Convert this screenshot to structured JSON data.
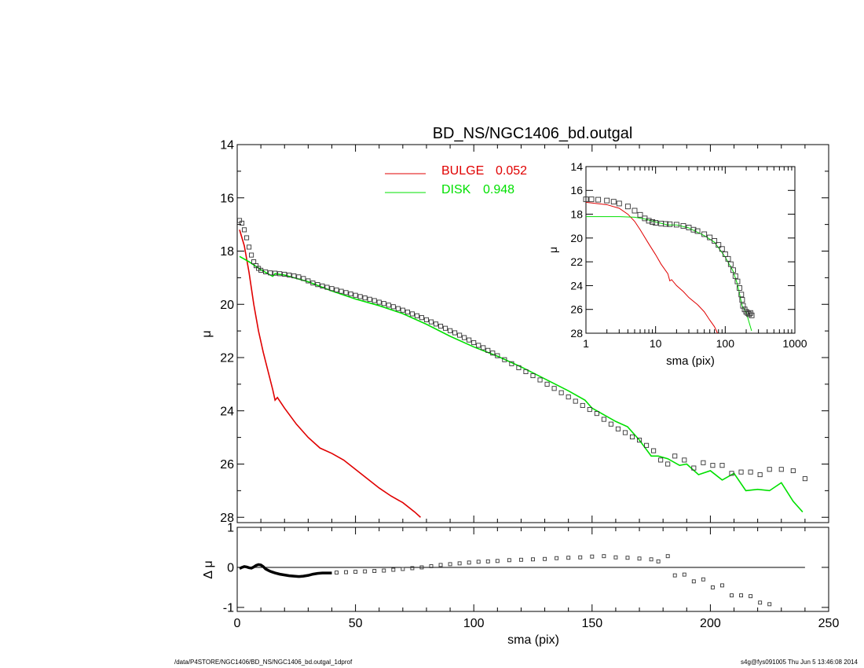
{
  "footer": {
    "path": "/data/P4STORE/NGC1406/BD_NS/NGC1406_bd.outgal_1dprof",
    "stamp": "s4g@fys091005  Thu Jun  5 13:46:08 2014"
  },
  "chart_data": [
    {
      "type": "line",
      "title": "BD_NS/NGC1406_bd.outgal",
      "xlabel": "",
      "ylabel": "μ",
      "xlim": [
        0,
        250
      ],
      "ylim": [
        28.2,
        14
      ],
      "y_inverted": true,
      "x_ticks": [
        0,
        50,
        100,
        150,
        200,
        250
      ],
      "x_tick_labels": [
        "",
        "",
        "",
        "",
        "",
        ""
      ],
      "y_ticks": [
        14,
        16,
        18,
        20,
        22,
        24,
        26,
        28
      ],
      "y_tick_labels": [
        "14",
        "16",
        "18",
        "20",
        "22",
        "24",
        "26",
        "28"
      ],
      "legend": [
        {
          "label": "BULGE",
          "value": "0.052",
          "color": "#e00000"
        },
        {
          "label": "DISK",
          "value": "0.948",
          "color": "#00e000"
        }
      ],
      "legend_placement": "top-center",
      "series": [
        {
          "name": "BULGE",
          "color": "#e00000",
          "style": "line",
          "x": [
            1,
            3,
            5,
            7,
            9,
            11,
            13,
            15,
            16,
            17,
            20,
            25,
            30,
            35,
            40,
            45,
            50,
            55,
            60,
            65,
            70,
            75,
            77.5
          ],
          "y": [
            17.2,
            17.8,
            18.8,
            20.0,
            21.0,
            21.8,
            22.5,
            23.2,
            23.6,
            23.5,
            23.9,
            24.5,
            25.0,
            25.4,
            25.6,
            25.85,
            26.2,
            26.55,
            26.9,
            27.2,
            27.45,
            27.8,
            28.0
          ]
        },
        {
          "name": "DISK",
          "color": "#00e000",
          "style": "line",
          "x": [
            1,
            5,
            10,
            15,
            16,
            20,
            30,
            40,
            50,
            60,
            70,
            80,
            90,
            100,
            110,
            120,
            130,
            140,
            147,
            150,
            155,
            160,
            165,
            170,
            175,
            178,
            182,
            187,
            190,
            195,
            200,
            205,
            210,
            215,
            220,
            225,
            230,
            235,
            239
          ],
          "y": [
            18.2,
            18.4,
            18.7,
            18.95,
            18.85,
            18.9,
            19.15,
            19.5,
            19.8,
            20.05,
            20.35,
            20.75,
            21.2,
            21.6,
            21.95,
            22.35,
            22.8,
            23.25,
            23.6,
            23.9,
            24.15,
            24.4,
            24.6,
            25.1,
            25.7,
            25.7,
            25.8,
            26.05,
            26.0,
            26.4,
            26.25,
            26.6,
            26.35,
            27.0,
            26.95,
            27.0,
            26.7,
            27.4,
            27.8
          ]
        },
        {
          "name": "",
          "color": "#000000",
          "style": "marker",
          "x": [
            1,
            2,
            3,
            4,
            5,
            6,
            7,
            8,
            9,
            10,
            12,
            14,
            16,
            18,
            20,
            22,
            24,
            26,
            28,
            30,
            32,
            34,
            36,
            38,
            40,
            42,
            44,
            46,
            48,
            50,
            52,
            54,
            56,
            58,
            60,
            62,
            64,
            66,
            68,
            70,
            72,
            74,
            76,
            78,
            80,
            82,
            84,
            86,
            88,
            90,
            92,
            94,
            96,
            98,
            100,
            102,
            104,
            106,
            108,
            110,
            113,
            116,
            119,
            122,
            125,
            128,
            131,
            134,
            137,
            140,
            143,
            146,
            149,
            152,
            155,
            158,
            161,
            164,
            167,
            170,
            173,
            176,
            179,
            182,
            185,
            189,
            193,
            197,
            201,
            205,
            209,
            213,
            217,
            221,
            225,
            230,
            235,
            240
          ],
          "y": [
            16.85,
            16.95,
            17.2,
            17.5,
            17.85,
            18.15,
            18.4,
            18.55,
            18.65,
            18.72,
            18.78,
            18.82,
            18.83,
            18.85,
            18.87,
            18.9,
            18.93,
            18.97,
            19.03,
            19.12,
            19.2,
            19.26,
            19.31,
            19.36,
            19.41,
            19.46,
            19.51,
            19.56,
            19.61,
            19.66,
            19.71,
            19.76,
            19.81,
            19.86,
            19.92,
            19.97,
            20.03,
            20.09,
            20.16,
            20.22,
            20.29,
            20.36,
            20.43,
            20.5,
            20.58,
            20.66,
            20.74,
            20.82,
            20.9,
            20.99,
            21.07,
            21.16,
            21.25,
            21.34,
            21.44,
            21.54,
            21.63,
            21.73,
            21.83,
            21.93,
            22.08,
            22.23,
            22.38,
            22.53,
            22.68,
            22.84,
            23.0,
            23.16,
            23.32,
            23.48,
            23.64,
            23.8,
            23.95,
            24.1,
            24.32,
            24.5,
            24.68,
            24.82,
            24.98,
            25.1,
            25.3,
            25.5,
            25.85,
            26.0,
            25.7,
            25.85,
            26.15,
            25.95,
            26.05,
            26.05,
            26.35,
            26.3,
            26.3,
            26.4,
            26.2,
            26.2,
            26.25,
            26.55
          ]
        }
      ]
    },
    {
      "type": "scatter",
      "title": "",
      "xlabel": "sma (pix)",
      "ylabel": "Δ μ",
      "xlim": [
        0,
        250
      ],
      "ylim": [
        -1.1,
        1.0
      ],
      "x_ticks": [
        0,
        50,
        100,
        150,
        200,
        250
      ],
      "x_tick_labels": [
        "0",
        "50",
        "100",
        "150",
        "200",
        "250"
      ],
      "y_ticks": [
        1,
        0,
        -1
      ],
      "y_tick_labels": [
        "1",
        "0",
        "-1"
      ],
      "reference_line": 0,
      "series": [
        {
          "name": "",
          "color": "#000000",
          "style": "dense-line",
          "x": [
            1,
            2,
            3,
            4,
            5,
            6,
            7,
            8,
            9,
            10,
            11,
            12,
            13,
            14,
            15,
            16,
            18,
            20,
            22,
            24,
            26,
            28,
            30,
            32,
            34,
            36,
            38,
            40
          ],
          "y": [
            -0.03,
            0.0,
            0.02,
            0.01,
            -0.01,
            -0.02,
            0.01,
            0.05,
            0.07,
            0.06,
            0.02,
            -0.04,
            -0.07,
            -0.1,
            -0.12,
            -0.14,
            -0.17,
            -0.19,
            -0.21,
            -0.22,
            -0.23,
            -0.22,
            -0.2,
            -0.17,
            -0.15,
            -0.14,
            -0.14,
            -0.14
          ]
        },
        {
          "name": "",
          "color": "#000000",
          "style": "marker",
          "x": [
            42,
            46,
            50,
            54,
            58,
            62,
            66,
            70,
            74,
            78,
            82,
            86,
            90,
            94,
            98,
            102,
            106,
            110,
            115,
            120,
            125,
            130,
            135,
            140,
            145,
            150,
            155,
            160,
            165,
            170,
            175,
            178,
            182,
            185,
            189,
            193,
            197,
            201,
            205,
            209,
            213,
            217,
            221,
            225
          ],
          "y": [
            -0.13,
            -0.12,
            -0.11,
            -0.1,
            -0.09,
            -0.08,
            -0.06,
            -0.04,
            -0.02,
            0.0,
            0.03,
            0.06,
            0.08,
            0.1,
            0.12,
            0.14,
            0.15,
            0.16,
            0.18,
            0.19,
            0.2,
            0.21,
            0.23,
            0.24,
            0.25,
            0.27,
            0.28,
            0.25,
            0.24,
            0.22,
            0.2,
            0.15,
            0.28,
            -0.2,
            -0.18,
            -0.35,
            -0.3,
            -0.5,
            -0.45,
            -0.7,
            -0.7,
            -0.72,
            -0.88,
            -0.92
          ]
        }
      ]
    },
    {
      "type": "line",
      "title": "",
      "xlabel": "sma (pix)",
      "ylabel": "μ",
      "x_scale": "log",
      "xlim": [
        1,
        1000
      ],
      "ylim": [
        28,
        14
      ],
      "y_inverted": true,
      "x_ticks": [
        1,
        10,
        100,
        1000
      ],
      "x_tick_labels": [
        "1",
        "10",
        "100",
        "1000"
      ],
      "y_ticks": [
        14,
        16,
        18,
        20,
        22,
        24,
        26,
        28
      ],
      "y_tick_labels": [
        "14",
        "16",
        "18",
        "20",
        "22",
        "24",
        "26",
        "28"
      ],
      "series": [
        {
          "name": "BULGE",
          "color": "#e00000",
          "style": "line",
          "x": [
            1,
            2,
            3,
            4,
            5,
            6,
            8,
            10,
            12,
            15,
            16,
            17,
            20,
            25,
            30,
            40,
            50,
            60,
            70,
            77.5
          ],
          "y": [
            17.0,
            17.2,
            17.5,
            18.0,
            18.6,
            19.3,
            20.5,
            21.4,
            22.2,
            23.0,
            23.6,
            23.5,
            24.0,
            24.5,
            25.0,
            25.6,
            26.2,
            26.9,
            27.45,
            28.0
          ]
        },
        {
          "name": "DISK",
          "color": "#00e000",
          "style": "line",
          "x": [
            1,
            3,
            5,
            7,
            10,
            15,
            20,
            30,
            50,
            70,
            100,
            130,
            150,
            175,
            200,
            239
          ],
          "y": [
            18.2,
            18.2,
            18.25,
            18.4,
            18.65,
            18.9,
            18.9,
            19.15,
            19.8,
            20.35,
            21.6,
            22.8,
            23.9,
            25.7,
            26.25,
            27.8
          ]
        },
        {
          "name": "",
          "color": "#000000",
          "style": "marker",
          "x": [
            1,
            1.2,
            1.5,
            2,
            2.5,
            3,
            4,
            5,
            6,
            7,
            8,
            9,
            10,
            12,
            14,
            16,
            20,
            25,
            30,
            35,
            40,
            50,
            60,
            70,
            80,
            90,
            100,
            110,
            120,
            130,
            140,
            150,
            160,
            170,
            175,
            180,
            190,
            200,
            210,
            220,
            230,
            240
          ],
          "y": [
            16.75,
            16.75,
            16.78,
            16.85,
            16.95,
            17.1,
            17.35,
            17.7,
            18.05,
            18.35,
            18.55,
            18.65,
            18.72,
            18.78,
            18.82,
            18.84,
            18.88,
            18.98,
            19.12,
            19.3,
            19.42,
            19.68,
            19.95,
            20.24,
            20.58,
            20.92,
            21.36,
            21.75,
            22.2,
            22.7,
            23.2,
            23.65,
            24.2,
            24.75,
            25.2,
            25.7,
            26.0,
            26.2,
            26.3,
            26.4,
            26.3,
            26.5
          ]
        }
      ]
    }
  ]
}
